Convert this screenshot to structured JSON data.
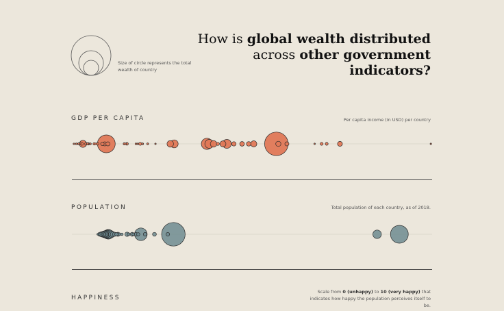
{
  "legend": {
    "note": "Size of circle represents the total wealth of country"
  },
  "title": {
    "part1": "How is ",
    "bold1": "global wealth distributed",
    "part2": "across ",
    "bold2": "other government",
    "bold3": "indicators?"
  },
  "sections": {
    "gdp": {
      "label": "GDP PER CAPITA",
      "note": "Per capita income (in USD) per country"
    },
    "population": {
      "label": "POPULATION",
      "note": "Total population of each country, as of 2018."
    },
    "happiness": {
      "label": "HAPPINESS",
      "note_pre": "Scale from ",
      "note_b1": "0 (unhappy)",
      "note_mid": " to ",
      "note_b2": "10 (very happy)",
      "note_post": " that indicates how happy the population perceives itself to be."
    }
  },
  "colors": {
    "gdp": "#e07856",
    "population": "#6e8b91",
    "background": "#ece7dc"
  },
  "chart_data": [
    {
      "type": "scatter",
      "title": "GDP PER CAPITA",
      "xlabel": "Per capita income (in USD) per country",
      "color": "#e07856",
      "points": [
        {
          "x": 0.0,
          "r": 1.2
        },
        {
          "x": 0.6,
          "r": 1.3
        },
        {
          "x": 1.2,
          "r": 1.5
        },
        {
          "x": 1.6,
          "r": 1.2
        },
        {
          "x": 2.0,
          "r": 2.2
        },
        {
          "x": 2.3,
          "r": 5.2
        },
        {
          "x": 3.1,
          "r": 2.0
        },
        {
          "x": 3.5,
          "r": 1.6
        },
        {
          "x": 3.7,
          "r": 1.8
        },
        {
          "x": 4.2,
          "r": 1.4
        },
        {
          "x": 5.2,
          "r": 1.8
        },
        {
          "x": 5.6,
          "r": 1.3
        },
        {
          "x": 6.1,
          "r": 1.9
        },
        {
          "x": 7.3,
          "r": 2.6
        },
        {
          "x": 7.9,
          "r": 3.0
        },
        {
          "x": 8.3,
          "r": 13.0
        },
        {
          "x": 8.7,
          "r": 3.0
        },
        {
          "x": 12.9,
          "r": 1.6
        },
        {
          "x": 13.3,
          "r": 1.3
        },
        {
          "x": 13.6,
          "r": 2.0
        },
        {
          "x": 15.9,
          "r": 1.3
        },
        {
          "x": 16.4,
          "r": 1.3
        },
        {
          "x": 17.0,
          "r": 2.2
        },
        {
          "x": 17.6,
          "r": 1.4
        },
        {
          "x": 18.9,
          "r": 1.4
        },
        {
          "x": 20.9,
          "r": 1.1
        },
        {
          "x": 24.7,
          "r": 4.8
        },
        {
          "x": 25.7,
          "r": 5.8
        },
        {
          "x": 34.1,
          "r": 8.2
        },
        {
          "x": 34.7,
          "r": 6.5
        },
        {
          "x": 35.8,
          "r": 4.8
        },
        {
          "x": 36.9,
          "r": 2.3
        },
        {
          "x": 38.2,
          "r": 4.4
        },
        {
          "x": 39.2,
          "r": 6.5
        },
        {
          "x": 41.0,
          "r": 3.2
        },
        {
          "x": 43.1,
          "r": 3.4
        },
        {
          "x": 44.8,
          "r": 3.3
        },
        {
          "x": 46.1,
          "r": 4.5
        },
        {
          "x": 51.9,
          "r": 17.2
        },
        {
          "x": 52.4,
          "r": 3.8
        },
        {
          "x": 54.6,
          "r": 3.0
        },
        {
          "x": 61.7,
          "r": 1.1
        },
        {
          "x": 63.5,
          "r": 2.2
        },
        {
          "x": 64.8,
          "r": 2.1
        },
        {
          "x": 68.2,
          "r": 3.6
        },
        {
          "x": 91.5,
          "r": 1.1
        }
      ]
    },
    {
      "type": "scatter",
      "title": "POPULATION",
      "xlabel": "Total population of each country, as of 2018.",
      "color": "#6e8b91",
      "points": [
        {
          "x": 4.5,
          "r": 1.2
        },
        {
          "x": 5.0,
          "r": 2.0
        },
        {
          "x": 5.4,
          "r": 2.8
        },
        {
          "x": 5.8,
          "r": 3.2
        },
        {
          "x": 6.2,
          "r": 3.6
        },
        {
          "x": 6.6,
          "r": 4.0
        },
        {
          "x": 7.0,
          "r": 4.3
        },
        {
          "x": 7.4,
          "r": 4.8
        },
        {
          "x": 7.8,
          "r": 5.2
        },
        {
          "x": 8.3,
          "r": 5.5
        },
        {
          "x": 8.7,
          "r": 6.3
        },
        {
          "x": 9.3,
          "r": 7.0
        },
        {
          "x": 10.0,
          "r": 6.0
        },
        {
          "x": 10.8,
          "r": 4.7
        },
        {
          "x": 11.3,
          "r": 3.7
        },
        {
          "x": 12.1,
          "r": 3.0
        },
        {
          "x": 12.9,
          "r": 2.5
        },
        {
          "x": 13.6,
          "r": 3.0
        },
        {
          "x": 14.3,
          "r": 2.0
        },
        {
          "x": 15.4,
          "r": 1.8
        },
        {
          "x": 17.7,
          "r": 3.2
        },
        {
          "x": 18.4,
          "r": 2.1
        },
        {
          "x": 20.0,
          "r": 2.9
        },
        {
          "x": 20.5,
          "r": 2.0
        },
        {
          "x": 21.7,
          "r": 2.6
        },
        {
          "x": 22.7,
          "r": 2.4
        },
        {
          "x": 23.9,
          "r": 9.2
        },
        {
          "x": 25.8,
          "r": 2.6
        },
        {
          "x": 30.0,
          "r": 2.8
        },
        {
          "x": 36.0,
          "r": 2.6
        },
        {
          "x": 38.5,
          "r": 17.2
        },
        {
          "x": 130.0,
          "r": 6.2
        },
        {
          "x": 140.0,
          "r": 13.0
        }
      ]
    }
  ]
}
